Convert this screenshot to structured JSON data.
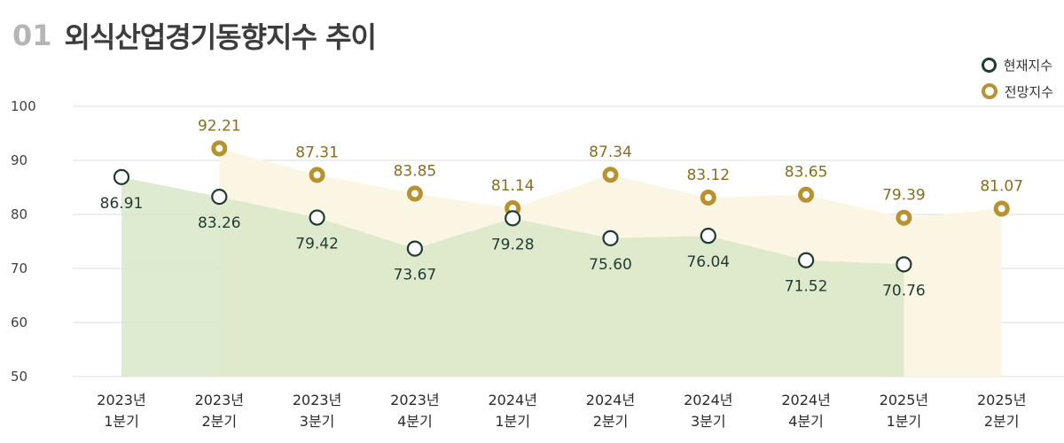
{
  "title": {
    "number": "01",
    "text": "외식산업경기동향지수 추이"
  },
  "colors": {
    "current": "#1f3b33",
    "forecast": "#b8922f",
    "current_area": "#d9e8c9",
    "forecast_area": "#fbf6e3",
    "grid": "#dcdcdc"
  },
  "chart_data": {
    "type": "line",
    "categories": [
      [
        "2023년",
        "1분기"
      ],
      [
        "2023년",
        "2분기"
      ],
      [
        "2023년",
        "3분기"
      ],
      [
        "2023년",
        "4분기"
      ],
      [
        "2024년",
        "1분기"
      ],
      [
        "2024년",
        "2분기"
      ],
      [
        "2024년",
        "3분기"
      ],
      [
        "2024년",
        "4분기"
      ],
      [
        "2025년",
        "1분기"
      ],
      [
        "2025년",
        "2분기"
      ]
    ],
    "series": [
      {
        "name": "현재지수",
        "values": [
          86.91,
          83.26,
          79.42,
          73.67,
          79.28,
          75.6,
          76.04,
          71.52,
          70.76,
          null
        ],
        "labels": [
          "86.91",
          "83.26",
          "79.42",
          "73.67",
          "79.28",
          "75.60",
          "76.04",
          "71.52",
          "70.76",
          null
        ]
      },
      {
        "name": "전망지수",
        "values": [
          null,
          92.21,
          87.31,
          83.85,
          81.14,
          87.34,
          83.12,
          83.65,
          79.39,
          81.07
        ],
        "labels": [
          null,
          "92.21",
          "87.31",
          "83.85",
          "81.14",
          "87.34",
          "83.12",
          "83.65",
          "79.39",
          "81.07"
        ]
      }
    ],
    "ylim": [
      50,
      100
    ],
    "yticks": [
      "50",
      "60",
      "70",
      "80",
      "90",
      "100"
    ],
    "grid": true,
    "legend": "top-right"
  }
}
